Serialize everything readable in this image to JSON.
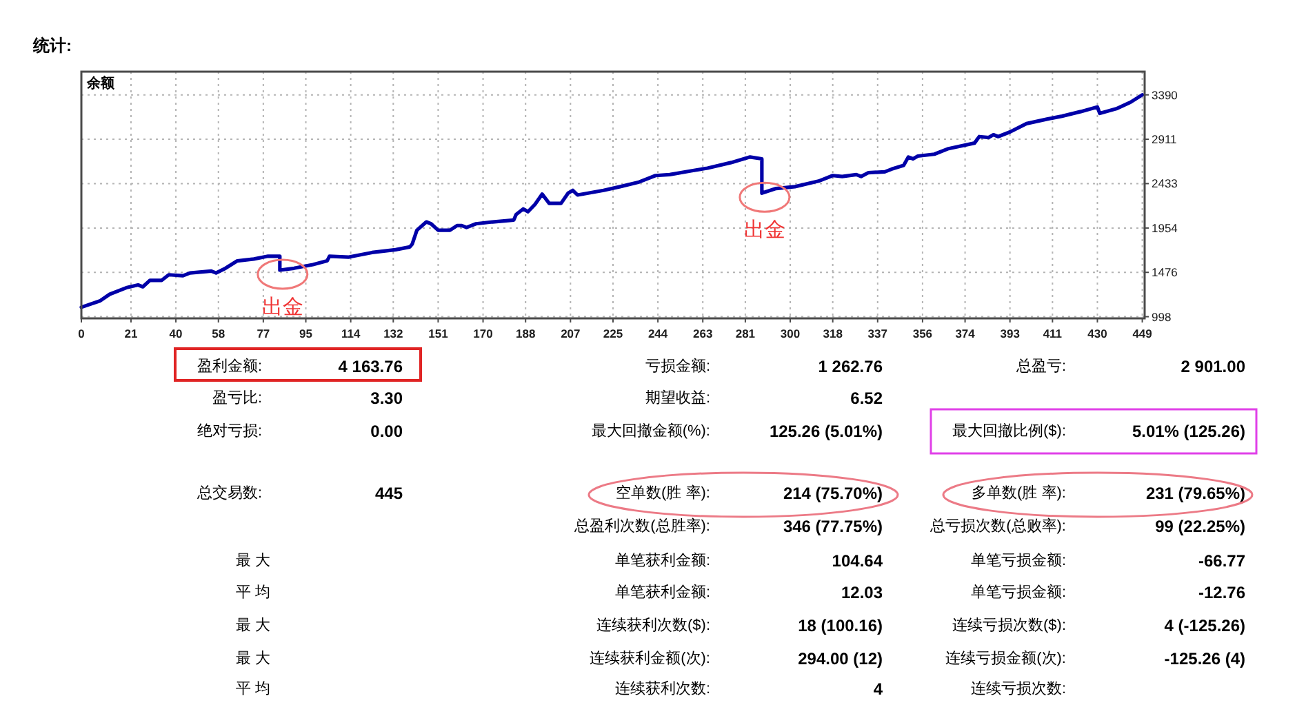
{
  "chart_data": [
    {
      "type": "line",
      "title": "统计:",
      "ylabel": "余额",
      "color": "#0000a8",
      "x": [
        0,
        8,
        12,
        19,
        24,
        26,
        29,
        34,
        37,
        43,
        46,
        55,
        57,
        61,
        66,
        73,
        79,
        84,
        84,
        90,
        98,
        104,
        105,
        113,
        123,
        133,
        139,
        140,
        142,
        146,
        148,
        151,
        156,
        159,
        161,
        163,
        167,
        174,
        183,
        184,
        187,
        189,
        192,
        195,
        198,
        203,
        206,
        208,
        210,
        221,
        228,
        236,
        243,
        249,
        258,
        265,
        275,
        283,
        288,
        288,
        294,
        302,
        312,
        318,
        322,
        328,
        330,
        333,
        340,
        343,
        348,
        350,
        352,
        354,
        361,
        367,
        378,
        380,
        384,
        386,
        388,
        393,
        400,
        409,
        415,
        423,
        430,
        431,
        438,
        444,
        449
      ],
      "values": [
        1100,
        1170,
        1240,
        1310,
        1340,
        1320,
        1390,
        1390,
        1450,
        1440,
        1470,
        1490,
        1470,
        1520,
        1600,
        1620,
        1650,
        1650,
        1500,
        1520,
        1560,
        1600,
        1650,
        1640,
        1690,
        1720,
        1750,
        1780,
        1930,
        2020,
        2000,
        1930,
        1930,
        1980,
        1980,
        1960,
        2000,
        2020,
        2040,
        2100,
        2160,
        2130,
        2210,
        2320,
        2220,
        2220,
        2330,
        2360,
        2310,
        2360,
        2400,
        2450,
        2520,
        2530,
        2570,
        2600,
        2660,
        2720,
        2700,
        2330,
        2380,
        2400,
        2460,
        2520,
        2510,
        2530,
        2510,
        2550,
        2560,
        2590,
        2630,
        2720,
        2700,
        2730,
        2750,
        2810,
        2870,
        2940,
        2930,
        2960,
        2940,
        2990,
        3080,
        3130,
        3160,
        3210,
        3260,
        3190,
        3240,
        3310,
        3390
      ],
      "xlim": [
        0,
        450
      ],
      "xticks": [
        0,
        21,
        40,
        58,
        77,
        95,
        114,
        132,
        151,
        170,
        188,
        207,
        225,
        244,
        263,
        281,
        300,
        318,
        337,
        356,
        374,
        393,
        411,
        430,
        449
      ],
      "ylim": [
        980,
        3640
      ],
      "yticks": [
        998,
        1476,
        1954,
        2433,
        2911,
        3390
      ],
      "grid": true,
      "annotations": [
        {
          "text": "出金",
          "x": 84,
          "y": 1500
        },
        {
          "text": "出金",
          "x": 288,
          "y": 2330
        }
      ]
    },
    {
      "type": "other",
      "annotations": [
        "盈利金额:",
        "4 163.76",
        "亏损金额:",
        "1 262.76",
        "总盈亏:",
        "2 901.00",
        "盈亏比:",
        "3.30",
        "期望收益:",
        "6.52",
        "绝对亏损:",
        "0.00",
        "最大回撤金额(%):",
        "125.26 (5.01%)",
        "最大回撤比例($):",
        "5.01% (125.26)",
        "总交易数:",
        "445",
        "空单数(胜 率):",
        "214 (75.70%)",
        "多单数(胜 率):",
        "231 (79.65%)",
        "总盈利次数(总胜率):",
        "346 (77.75%)",
        "总亏损次数(总败率):",
        "99 (22.25%)",
        "最 大",
        "单笔获利金额:",
        "104.64",
        "单笔亏损金额:",
        "-66.77",
        "平 均",
        "单笔获利金额:",
        "12.03",
        "单笔亏损金额:",
        "-12.76",
        "最 大",
        "连续获利次数($):",
        "18 (100.16)",
        "连续亏损次数($):",
        "4 (-125.26)",
        "最 大",
        "连续获利金额(次):",
        "294.00 (12)",
        "连续亏损金额(次):",
        "-125.26 (4)",
        "平 均",
        "连续获利次数:",
        "4",
        "连续亏损次数:"
      ]
    }
  ]
}
